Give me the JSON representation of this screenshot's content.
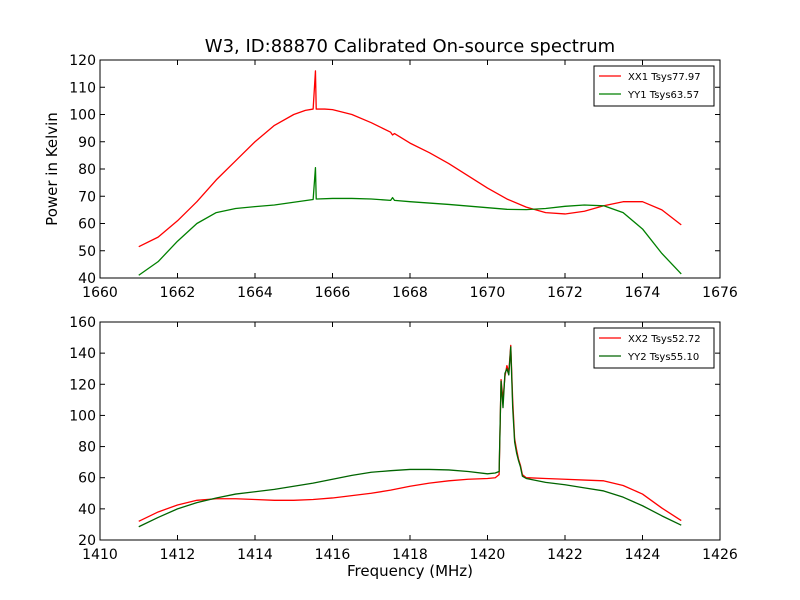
{
  "chart_data": [
    {
      "type": "line",
      "title": "W3, ID:88870 Calibrated On-source spectrum",
      "xlabel": "",
      "ylabel": "Power in Kelvin",
      "xlim": [
        1660,
        1676
      ],
      "ylim": [
        40,
        120
      ],
      "xticks": [
        1660,
        1662,
        1664,
        1666,
        1668,
        1670,
        1672,
        1674,
        1676
      ],
      "yticks": [
        40,
        50,
        60,
        70,
        80,
        90,
        100,
        110,
        120
      ],
      "grid": false,
      "legend_position": "top-right",
      "series": [
        {
          "name": "XX1 Tsys77.97",
          "color": "#ff0000",
          "x": [
            1661.0,
            1661.5,
            1662.0,
            1662.5,
            1663.0,
            1663.5,
            1664.0,
            1664.5,
            1665.0,
            1665.3,
            1665.5,
            1665.56,
            1665.58,
            1665.6,
            1665.8,
            1666.0,
            1666.5,
            1667.0,
            1667.5,
            1667.55,
            1667.6,
            1668.0,
            1668.5,
            1669.0,
            1669.5,
            1670.0,
            1670.5,
            1671.0,
            1671.5,
            1672.0,
            1672.5,
            1673.0,
            1673.5,
            1674.0,
            1674.5,
            1675.0
          ],
          "y": [
            51.5,
            55,
            61,
            68,
            76,
            83,
            90,
            96,
            100,
            101.5,
            102,
            116,
            102,
            102,
            102,
            101.8,
            100,
            97,
            93.5,
            92.5,
            93,
            89.5,
            86,
            82,
            77.5,
            73,
            69,
            66,
            64,
            63.5,
            64.5,
            66.5,
            68,
            68,
            65,
            59.5
          ]
        },
        {
          "name": "YY1 Tsys63.57",
          "color": "#008000",
          "x": [
            1661.0,
            1661.5,
            1662.0,
            1662.5,
            1663.0,
            1663.5,
            1664.0,
            1664.5,
            1665.0,
            1665.5,
            1665.56,
            1665.58,
            1665.6,
            1666.0,
            1666.5,
            1667.0,
            1667.5,
            1667.55,
            1667.6,
            1668.0,
            1669.0,
            1670.0,
            1670.5,
            1671.0,
            1671.5,
            1672.0,
            1672.5,
            1673.0,
            1673.5,
            1674.0,
            1674.5,
            1675.0
          ],
          "y": [
            41,
            46,
            53.5,
            60,
            64,
            65.5,
            66.2,
            66.8,
            67.8,
            68.8,
            80.5,
            69,
            69,
            69.2,
            69.2,
            69,
            68.5,
            69.5,
            68.5,
            68,
            67,
            65.8,
            65.2,
            65.1,
            65.5,
            66.3,
            66.8,
            66.5,
            64,
            58,
            49,
            41.5
          ]
        }
      ]
    },
    {
      "type": "line",
      "title": "",
      "xlabel": "Frequency (MHz)",
      "ylabel": "",
      "xlim": [
        1410,
        1426
      ],
      "ylim": [
        20,
        160
      ],
      "xticks": [
        1410,
        1412,
        1414,
        1416,
        1418,
        1420,
        1422,
        1424,
        1426
      ],
      "yticks": [
        20,
        40,
        60,
        80,
        100,
        120,
        140,
        160
      ],
      "grid": false,
      "legend_position": "top-right",
      "series": [
        {
          "name": "XX2 Tsys52.72",
          "color": "#ff0000",
          "x": [
            1411.0,
            1411.5,
            1412.0,
            1412.5,
            1413.0,
            1413.5,
            1414.0,
            1414.5,
            1415.0,
            1415.5,
            1416.0,
            1416.5,
            1417.0,
            1417.5,
            1418.0,
            1418.5,
            1419.0,
            1419.5,
            1420.0,
            1420.2,
            1420.3,
            1420.35,
            1420.4,
            1420.45,
            1420.5,
            1420.55,
            1420.6,
            1420.65,
            1420.7,
            1420.75,
            1420.8,
            1420.85,
            1420.9,
            1421.0,
            1421.5,
            1422.0,
            1422.5,
            1423.0,
            1423.5,
            1424.0,
            1424.5,
            1425.0
          ],
          "y": [
            32,
            38,
            42.5,
            45.5,
            46.5,
            46.5,
            46,
            45.5,
            45.5,
            46,
            47,
            48.5,
            50,
            52,
            54.5,
            56.5,
            58,
            59,
            59.5,
            60,
            62,
            123,
            110,
            125,
            132,
            128,
            145,
            110,
            85,
            78,
            72,
            68,
            62,
            60,
            59.5,
            59,
            58.5,
            58,
            55,
            49.5,
            40.5,
            32.5
          ]
        },
        {
          "name": "YY2 Tsys55.10",
          "color": "#006400",
          "x": [
            1411.0,
            1411.5,
            1412.0,
            1412.5,
            1413.0,
            1413.5,
            1414.0,
            1414.5,
            1415.0,
            1415.5,
            1416.0,
            1416.5,
            1417.0,
            1417.5,
            1418.0,
            1418.5,
            1419.0,
            1419.5,
            1420.0,
            1420.2,
            1420.3,
            1420.35,
            1420.4,
            1420.45,
            1420.5,
            1420.55,
            1420.6,
            1420.65,
            1420.7,
            1420.75,
            1420.8,
            1420.85,
            1420.9,
            1421.0,
            1421.5,
            1422.0,
            1422.5,
            1423.0,
            1423.5,
            1424.0,
            1424.5,
            1425.0
          ],
          "y": [
            28.5,
            34.5,
            40,
            44,
            47,
            49.5,
            51,
            52.5,
            54.5,
            56.5,
            59,
            61.5,
            63.5,
            64.5,
            65.3,
            65.3,
            65,
            64,
            62.5,
            63,
            64,
            122,
            105,
            127,
            130,
            126,
            144,
            105,
            83,
            76,
            71,
            67,
            61,
            59.5,
            57,
            55.5,
            53.5,
            51.5,
            47.5,
            42,
            35.5,
            29.5
          ]
        }
      ]
    }
  ]
}
